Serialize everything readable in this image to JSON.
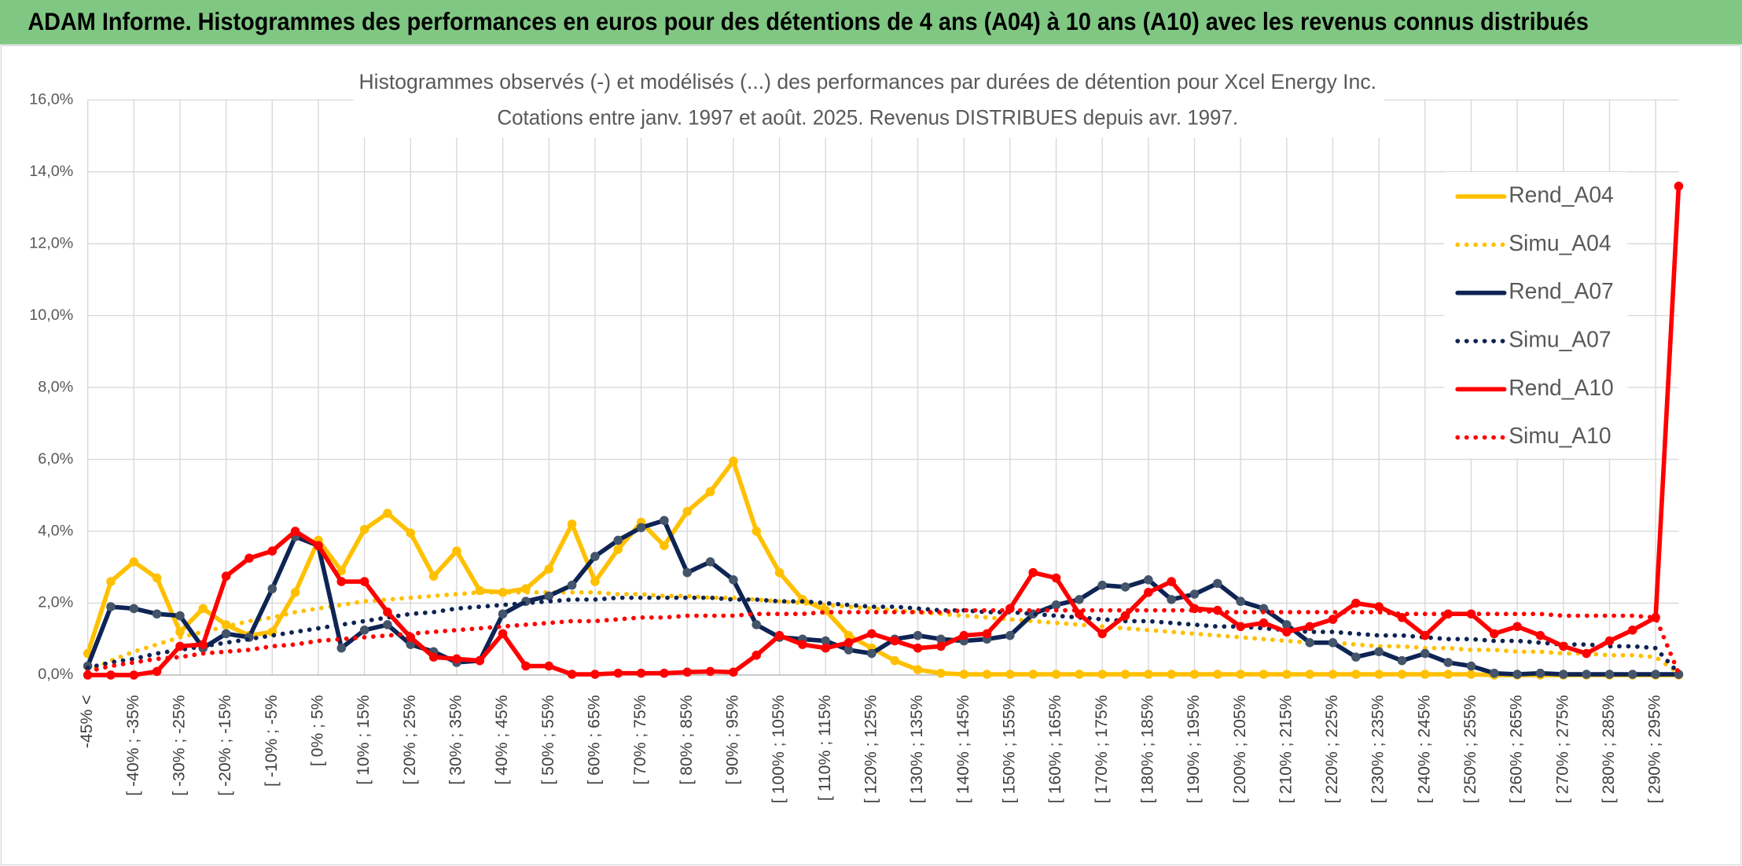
{
  "chart_data": {
    "type": "line",
    "title": "ADAM Informe. Histogrammes des performances en euros pour des détentions de 4 ans (A04) à 10 ans (A10) avec les revenus connus distribués",
    "subtitle": [
      "Histogrammes observés (-) et modélisés (...) des performances par durées de détention pour Xcel Energy Inc.",
      "Cotations entre janv. 1997 et août. 2025. Revenus DISTRIBUES depuis avr. 1997."
    ],
    "categories": [
      "-45% <",
      null,
      "[ -40% ; -35%",
      null,
      "[ -30% ; -25%",
      null,
      "[ -20% ; -15%",
      null,
      "[ -10% ; -5%",
      null,
      "[ 0% ; 5%",
      null,
      "[ 10% ; 15%",
      null,
      "[ 20% ; 25%",
      null,
      "[ 30% ; 35%",
      null,
      "[ 40% ; 45%",
      null,
      "[ 50% ; 55%",
      null,
      "[ 60% ; 65%",
      null,
      "[ 70% ; 75%",
      null,
      "[ 80% ; 85%",
      null,
      "[ 90% ; 95%",
      null,
      "[ 100% ; 105%",
      null,
      "[ 110% ; 115%",
      null,
      "[ 120% ; 125%",
      null,
      "[ 130% ; 135%",
      null,
      "[ 140% ; 145%",
      null,
      "[ 150% ; 155%",
      null,
      "[ 160% ; 165%",
      null,
      "[ 170% ; 175%",
      null,
      "[ 180% ; 185%",
      null,
      "[ 190% ; 195%",
      null,
      "[ 200% ; 205%",
      null,
      "[ 210% ; 215%",
      null,
      "[ 220% ; 225%",
      null,
      "[ 230% ; 235%",
      null,
      "[ 240% ; 245%",
      null,
      "[ 250% ; 255%",
      null,
      "[ 260% ; 265%",
      null,
      "[ 270% ; 275%",
      null,
      "[ 280% ; 285%",
      null,
      "[ 290% ; 295%",
      null
    ],
    "series": [
      {
        "name": "Rend_A04",
        "color": "#ffc000",
        "style": "solid",
        "markers": true,
        "marker_color": "#ffc000",
        "values": [
          0.6,
          2.6,
          3.15,
          2.7,
          1.2,
          1.85,
          1.4,
          1.1,
          1.2,
          2.3,
          3.75,
          2.9,
          4.05,
          4.5,
          3.95,
          2.75,
          3.45,
          2.35,
          2.3,
          2.4,
          2.95,
          4.2,
          2.6,
          3.5,
          4.25,
          3.6,
          4.55,
          5.1,
          5.95,
          4.0,
          2.85,
          2.1,
          1.8,
          1.1,
          0.75,
          0.4,
          0.15,
          0.05,
          0.02,
          0.02,
          0.02,
          0.02,
          0.02,
          0.02,
          0.02,
          0.02,
          0.02,
          0.02,
          0.02,
          0.02,
          0.02,
          0.02,
          0.02,
          0.02,
          0.02,
          0.02,
          0.02,
          0.02,
          0.02,
          0.02,
          0.02,
          0,
          0,
          0,
          0,
          0,
          0,
          0,
          0,
          0
        ]
      },
      {
        "name": "Simu_A04",
        "color": "#ffc000",
        "style": "dotted",
        "markers": false,
        "values": [
          0.1,
          0.4,
          0.65,
          0.85,
          1.05,
          1.2,
          1.35,
          1.5,
          1.6,
          1.75,
          1.85,
          1.95,
          2.05,
          2.1,
          2.15,
          2.2,
          2.25,
          2.3,
          2.3,
          2.3,
          2.3,
          2.3,
          2.3,
          2.25,
          2.25,
          2.2,
          2.2,
          2.15,
          2.15,
          2.1,
          2.05,
          2.0,
          1.95,
          1.9,
          1.85,
          1.8,
          1.75,
          1.7,
          1.65,
          1.6,
          1.55,
          1.5,
          1.45,
          1.4,
          1.35,
          1.3,
          1.25,
          1.2,
          1.15,
          1.1,
          1.05,
          1.0,
          0.95,
          0.9,
          0.9,
          0.85,
          0.8,
          0.8,
          0.75,
          0.75,
          0.7,
          0.7,
          0.65,
          0.65,
          0.6,
          0.6,
          0.55,
          0.55,
          0.5,
          0.05
        ]
      },
      {
        "name": "Rend_A07",
        "color": "#0e2454",
        "style": "solid",
        "markers": true,
        "marker_color": "#44546a",
        "values": [
          0.25,
          1.9,
          1.85,
          1.7,
          1.65,
          0.75,
          1.15,
          1.05,
          2.4,
          3.85,
          3.6,
          0.75,
          1.25,
          1.4,
          0.85,
          0.65,
          0.35,
          0.4,
          1.7,
          2.05,
          2.2,
          2.5,
          3.3,
          3.75,
          4.1,
          4.3,
          2.85,
          3.15,
          2.65,
          1.4,
          1.05,
          1.0,
          0.95,
          0.7,
          0.6,
          1.0,
          1.1,
          1.0,
          0.95,
          1.0,
          1.1,
          1.7,
          1.95,
          2.1,
          2.5,
          2.45,
          2.65,
          2.1,
          2.25,
          2.55,
          2.05,
          1.85,
          1.4,
          0.9,
          0.9,
          0.5,
          0.65,
          0.4,
          0.6,
          0.35,
          0.25,
          0.05,
          0.02,
          0.05,
          0.02,
          0.02,
          0.02,
          0.02,
          0.02,
          0.02
        ]
      },
      {
        "name": "Simu_A07",
        "color": "#0e2454",
        "style": "dotted",
        "markers": false,
        "values": [
          0.2,
          0.35,
          0.45,
          0.6,
          0.7,
          0.8,
          0.9,
          1.0,
          1.1,
          1.2,
          1.3,
          1.4,
          1.5,
          1.6,
          1.7,
          1.75,
          1.85,
          1.9,
          1.95,
          2.0,
          2.05,
          2.1,
          2.1,
          2.15,
          2.15,
          2.15,
          2.15,
          2.15,
          2.1,
          2.1,
          2.05,
          2.05,
          2.0,
          1.95,
          1.9,
          1.9,
          1.85,
          1.8,
          1.8,
          1.75,
          1.75,
          1.7,
          1.65,
          1.6,
          1.55,
          1.5,
          1.5,
          1.45,
          1.4,
          1.35,
          1.35,
          1.3,
          1.25,
          1.2,
          1.2,
          1.15,
          1.1,
          1.1,
          1.05,
          1.0,
          1.0,
          0.95,
          0.95,
          0.9,
          0.85,
          0.85,
          0.8,
          0.8,
          0.75,
          0.05
        ]
      },
      {
        "name": "Rend_A10",
        "color": "#ff0000",
        "style": "solid",
        "markers": true,
        "marker_color": "#ff0000",
        "values": [
          0,
          0,
          0,
          0.1,
          0.8,
          0.85,
          2.75,
          3.25,
          3.45,
          4.0,
          3.6,
          2.6,
          2.6,
          1.75,
          1.05,
          0.5,
          0.45,
          0.4,
          1.15,
          0.25,
          0.25,
          0.02,
          0.02,
          0.05,
          0.05,
          0.05,
          0.08,
          0.1,
          0.08,
          0.55,
          1.1,
          0.85,
          0.75,
          0.9,
          1.15,
          0.95,
          0.75,
          0.8,
          1.1,
          1.15,
          1.85,
          2.85,
          2.7,
          1.7,
          1.15,
          1.65,
          2.3,
          2.6,
          1.85,
          1.8,
          1.35,
          1.45,
          1.2,
          1.35,
          1.55,
          2.0,
          1.9,
          1.6,
          1.1,
          1.7,
          1.7,
          1.15,
          1.35,
          1.1,
          0.8,
          0.6,
          0.95,
          1.25,
          1.6,
          13.6
        ]
      },
      {
        "name": "Simu_A10",
        "color": "#ff0000",
        "style": "dotted",
        "markers": false,
        "values": [
          0.1,
          0.25,
          0.35,
          0.45,
          0.5,
          0.6,
          0.65,
          0.7,
          0.8,
          0.85,
          0.95,
          1.0,
          1.05,
          1.1,
          1.15,
          1.2,
          1.25,
          1.3,
          1.35,
          1.4,
          1.45,
          1.5,
          1.5,
          1.55,
          1.6,
          1.6,
          1.65,
          1.65,
          1.65,
          1.7,
          1.7,
          1.7,
          1.75,
          1.75,
          1.75,
          1.75,
          1.75,
          1.75,
          1.8,
          1.8,
          1.8,
          1.8,
          1.8,
          1.8,
          1.8,
          1.8,
          1.8,
          1.8,
          1.8,
          1.75,
          1.75,
          1.75,
          1.75,
          1.75,
          1.75,
          1.75,
          1.75,
          1.7,
          1.7,
          1.7,
          1.7,
          1.7,
          1.7,
          1.7,
          1.65,
          1.65,
          1.65,
          1.65,
          1.6,
          0.05
        ]
      }
    ],
    "ylim": [
      0,
      16
    ],
    "yticks": [
      {
        "value": 0,
        "label": "0,0%"
      },
      {
        "value": 2,
        "label": "2,0%"
      },
      {
        "value": 4,
        "label": "4,0%"
      },
      {
        "value": 6,
        "label": "6,0%"
      },
      {
        "value": 8,
        "label": "8,0%"
      },
      {
        "value": 10,
        "label": "10,0%"
      },
      {
        "value": 12,
        "label": "12,0%"
      },
      {
        "value": 14,
        "label": "14,0%"
      },
      {
        "value": 16,
        "label": "16,0%"
      }
    ],
    "grid": true,
    "legend": "right"
  }
}
